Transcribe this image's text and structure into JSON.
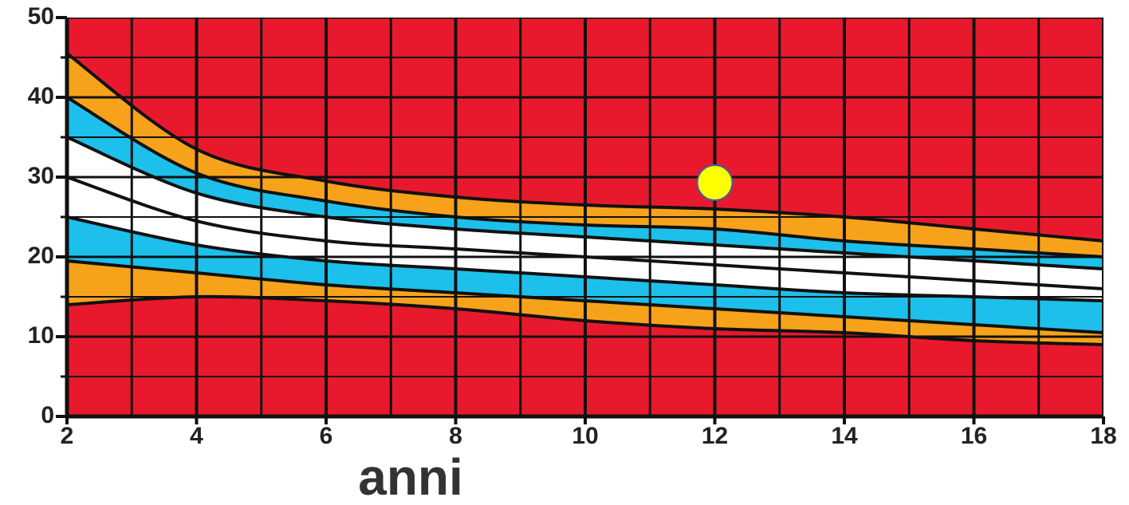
{
  "chart_data": {
    "type": "band",
    "x_label": "anni",
    "x": [
      2,
      4,
      6,
      8,
      10,
      12,
      14,
      16,
      18
    ],
    "series": [
      {
        "color": "#111111",
        "values": [
          45.5,
          33.5,
          29.5,
          27.5,
          26.5,
          26,
          25,
          23.5,
          22
        ]
      },
      {
        "color": "#111111",
        "values": [
          40,
          30.5,
          27,
          25,
          24,
          23.5,
          22,
          21,
          20
        ]
      },
      {
        "color": "#111111",
        "values": [
          35,
          28,
          25,
          23.5,
          22.5,
          21.5,
          20.5,
          19.5,
          18.5
        ]
      },
      {
        "color": "#111111",
        "values": [
          30,
          24.5,
          22,
          21,
          20,
          19,
          18,
          17,
          16
        ]
      },
      {
        "color": "#111111",
        "values": [
          25,
          21.5,
          19.5,
          18.5,
          17.5,
          16.5,
          15.5,
          15,
          14.5
        ]
      },
      {
        "color": "#111111",
        "values": [
          19.5,
          18,
          16.5,
          15.5,
          14.5,
          13.5,
          12.5,
          11.5,
          10.5
        ]
      },
      {
        "color": "#111111",
        "values": [
          14,
          15,
          14.5,
          13.5,
          12,
          11,
          10.5,
          9.5,
          9
        ]
      }
    ],
    "band_colors": [
      "#f7a21b",
      "#1cc0ea",
      "#ffffff",
      "#ffffff",
      "#1cc0ea",
      "#f7a21b"
    ],
    "background_color": "#e8192c",
    "point": {
      "x": 12,
      "y": 29.3,
      "color": "#ffff00"
    },
    "xlim": [
      2,
      18
    ],
    "ylim": [
      0,
      50
    ],
    "xticks": [
      2,
      4,
      6,
      8,
      10,
      12,
      14,
      16,
      18
    ],
    "yticks": [
      0,
      10,
      20,
      30,
      40,
      50
    ],
    "x_minor_ticks": [
      3,
      5,
      7,
      9,
      11,
      13,
      15,
      17
    ],
    "y_minor_ticks": [
      5,
      15,
      25,
      35,
      45
    ],
    "grid": true
  }
}
